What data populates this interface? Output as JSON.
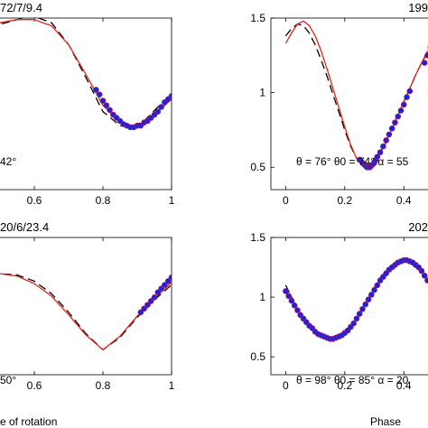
{
  "colors": {
    "model_line": "#e0251b",
    "reference_line": "#000000",
    "observed_points": "#1f22d6",
    "observed_edge": "#b0176a"
  },
  "chart_data": [
    {
      "id": "top-left",
      "type": "line",
      "title": "72/7/9.4",
      "annotation": "42°",
      "xlabel": "",
      "ylabel": "",
      "xlim": [
        0,
        1
      ],
      "ylim": [
        0.4,
        1.5
      ],
      "xticks": [
        0.6,
        0.8,
        1
      ],
      "xtick_labels": [
        "0.6",
        "0.8",
        "1"
      ],
      "yticks": [],
      "ytick_labels": [],
      "grid": false,
      "series": [
        {
          "style": "dashed-black",
          "x": [
            0,
            0.05,
            0.1,
            0.15,
            0.2,
            0.25,
            0.3,
            0.35,
            0.4,
            0.45,
            0.5,
            0.55,
            0.6,
            0.65,
            0.7,
            0.75,
            0.8,
            0.85,
            0.88,
            0.92,
            0.96,
            1.0
          ],
          "y": [
            0.75,
            0.72,
            0.78,
            0.88,
            1.0,
            1.11,
            1.21,
            1.3,
            1.37,
            1.42,
            1.46,
            1.49,
            1.51,
            1.47,
            1.33,
            1.12,
            0.9,
            0.81,
            0.8,
            0.84,
            0.93,
            1.0
          ]
        },
        {
          "style": "solid-red",
          "x": [
            0,
            0.05,
            0.1,
            0.15,
            0.2,
            0.25,
            0.3,
            0.35,
            0.4,
            0.45,
            0.5,
            0.55,
            0.6,
            0.65,
            0.7,
            0.75,
            0.8,
            0.85,
            0.88,
            0.92,
            0.96,
            1.0
          ],
          "y": [
            0.73,
            0.73,
            0.81,
            0.93,
            1.05,
            1.16,
            1.25,
            1.33,
            1.39,
            1.44,
            1.47,
            1.49,
            1.49,
            1.45,
            1.33,
            1.14,
            0.94,
            0.83,
            0.81,
            0.83,
            0.9,
            0.98
          ]
        },
        {
          "style": "points",
          "x": [
            0.78,
            0.79,
            0.8,
            0.81,
            0.82,
            0.83,
            0.84,
            0.85,
            0.86,
            0.87,
            0.88,
            0.89,
            0.9,
            0.91,
            0.92,
            0.93,
            0.94,
            0.95,
            0.96,
            0.97,
            0.98,
            0.99,
            1.0
          ],
          "y": [
            1.04,
            1.01,
            0.97,
            0.94,
            0.91,
            0.88,
            0.86,
            0.84,
            0.82,
            0.81,
            0.8,
            0.8,
            0.81,
            0.81,
            0.83,
            0.84,
            0.86,
            0.88,
            0.9,
            0.93,
            0.96,
            0.98,
            1.0
          ]
        }
      ]
    },
    {
      "id": "top-right",
      "type": "line",
      "title": "199",
      "annotation": "θ = 76°   θ0 = 74°   α = 55",
      "xlabel": "",
      "ylabel": "",
      "xlim": [
        -0.05,
        0.5
      ],
      "ylim": [
        0.35,
        1.5
      ],
      "xticks": [
        0,
        0.2,
        0.4
      ],
      "xtick_labels": [
        "0",
        "0.2",
        "0.4"
      ],
      "yticks": [
        0.5,
        1,
        1.5
      ],
      "ytick_labels": [
        "0.5",
        "1",
        "1.5"
      ],
      "grid": false,
      "series": [
        {
          "style": "dashed-black",
          "x": [
            0,
            0.02,
            0.04,
            0.06,
            0.08,
            0.1,
            0.12,
            0.14,
            0.16,
            0.18,
            0.2,
            0.22,
            0.24,
            0.26,
            0.28,
            0.3,
            0.32,
            0.34,
            0.36,
            0.38,
            0.4,
            0.42,
            0.44,
            0.46,
            0.48
          ],
          "y": [
            1.38,
            1.43,
            1.46,
            1.45,
            1.4,
            1.32,
            1.22,
            1.11,
            0.99,
            0.87,
            0.75,
            0.64,
            0.56,
            0.51,
            0.5,
            0.54,
            0.6,
            0.68,
            0.76,
            0.85,
            0.94,
            1.03,
            1.12,
            1.2,
            1.27
          ]
        },
        {
          "style": "solid-red",
          "x": [
            0,
            0.02,
            0.04,
            0.06,
            0.08,
            0.1,
            0.12,
            0.14,
            0.16,
            0.18,
            0.2,
            0.22,
            0.24,
            0.26,
            0.28,
            0.3,
            0.32,
            0.34,
            0.36,
            0.38,
            0.4,
            0.42,
            0.44,
            0.46,
            0.48
          ],
          "y": [
            1.33,
            1.4,
            1.46,
            1.48,
            1.45,
            1.38,
            1.28,
            1.16,
            1.03,
            0.9,
            0.77,
            0.65,
            0.56,
            0.51,
            0.5,
            0.53,
            0.59,
            0.67,
            0.76,
            0.85,
            0.94,
            1.03,
            1.12,
            1.2,
            1.28
          ]
        },
        {
          "style": "points",
          "x": [
            0.25,
            0.26,
            0.265,
            0.27,
            0.275,
            0.28,
            0.285,
            0.29,
            0.295,
            0.3,
            0.305,
            0.31,
            0.32,
            0.33,
            0.34,
            0.35,
            0.36,
            0.37,
            0.38,
            0.39,
            0.4,
            0.41,
            0.42,
            0.47,
            0.48,
            0.49
          ],
          "y": [
            0.55,
            0.53,
            0.52,
            0.51,
            0.5,
            0.5,
            0.5,
            0.51,
            0.52,
            0.53,
            0.55,
            0.57,
            0.6,
            0.64,
            0.68,
            0.72,
            0.76,
            0.8,
            0.84,
            0.88,
            0.92,
            0.97,
            1.01,
            1.2,
            1.25,
            1.3
          ]
        }
      ]
    },
    {
      "id": "bottom-left",
      "type": "line",
      "title": "20/6/23.4",
      "annotation": "50°",
      "xlabel": "e of rotation",
      "ylabel": "",
      "xlim": [
        0,
        1
      ],
      "ylim": [
        0.4,
        1.5
      ],
      "xticks": [
        0.6,
        0.8,
        1
      ],
      "xtick_labels": [
        "0.6",
        "0.8",
        "1"
      ],
      "yticks": [],
      "ytick_labels": [],
      "grid": false,
      "series": [
        {
          "style": "dashed-black",
          "x": [
            0,
            0.05,
            0.1,
            0.15,
            0.2,
            0.25,
            0.3,
            0.35,
            0.4,
            0.45,
            0.5,
            0.55,
            0.6,
            0.65,
            0.7,
            0.75,
            0.8,
            0.85,
            0.9,
            0.95,
            1.0
          ],
          "y": [
            0.68,
            0.72,
            0.8,
            0.88,
            0.96,
            1.04,
            1.1,
            1.15,
            1.18,
            1.2,
            1.21,
            1.2,
            1.15,
            1.05,
            0.9,
            0.73,
            0.6,
            0.7,
            0.86,
            1.0,
            1.12
          ]
        },
        {
          "style": "solid-red",
          "x": [
            0,
            0.05,
            0.1,
            0.15,
            0.2,
            0.25,
            0.3,
            0.35,
            0.4,
            0.45,
            0.5,
            0.55,
            0.6,
            0.65,
            0.7,
            0.75,
            0.8,
            0.85,
            0.9,
            0.95,
            1.0
          ],
          "y": [
            0.65,
            0.72,
            0.81,
            0.9,
            0.98,
            1.05,
            1.11,
            1.16,
            1.19,
            1.21,
            1.21,
            1.19,
            1.13,
            1.03,
            0.88,
            0.72,
            0.6,
            0.71,
            0.87,
            1.01,
            1.14
          ]
        },
        {
          "style": "points",
          "x": [
            0.91,
            0.92,
            0.93,
            0.94,
            0.95,
            0.96,
            0.97,
            0.98,
            0.99,
            1.0
          ],
          "y": [
            0.9,
            0.93,
            0.96,
            0.99,
            1.02,
            1.06,
            1.09,
            1.12,
            1.15,
            1.18
          ]
        }
      ]
    },
    {
      "id": "bottom-right",
      "type": "line",
      "title": "202",
      "annotation": "θ = 98°   θ0 = 85°   α = 20",
      "xlabel": "Phase",
      "ylabel": "",
      "xlim": [
        -0.05,
        0.5
      ],
      "ylim": [
        0.35,
        1.5
      ],
      "xticks": [
        0,
        0.2,
        0.4
      ],
      "xtick_labels": [
        "0",
        "0.2",
        "0.4"
      ],
      "yticks": [
        0.5,
        1,
        1.5
      ],
      "ytick_labels": [
        "0.5",
        "1",
        "1.5"
      ],
      "grid": false,
      "series": [
        {
          "style": "dashed-black",
          "x": [
            0,
            0.02,
            0.04,
            0.06,
            0.08,
            0.1,
            0.12,
            0.14,
            0.16,
            0.18,
            0.2,
            0.22,
            0.24,
            0.26,
            0.28,
            0.3,
            0.32,
            0.34,
            0.36,
            0.38,
            0.4,
            0.42,
            0.44,
            0.46,
            0.48
          ],
          "y": [
            1.1,
            1.0,
            0.9,
            0.82,
            0.75,
            0.7,
            0.67,
            0.66,
            0.66,
            0.67,
            0.7,
            0.75,
            0.82,
            0.9,
            0.99,
            1.08,
            1.16,
            1.22,
            1.27,
            1.3,
            1.32,
            1.31,
            1.28,
            1.22,
            1.15
          ]
        },
        {
          "style": "solid-red",
          "x": [
            0,
            0.02,
            0.04,
            0.06,
            0.08,
            0.1,
            0.12,
            0.14,
            0.16,
            0.18,
            0.2,
            0.22,
            0.24,
            0.26,
            0.28,
            0.3,
            0.32,
            0.34,
            0.36,
            0.38,
            0.4,
            0.42,
            0.44,
            0.46,
            0.48
          ],
          "y": [
            1.06,
            0.98,
            0.9,
            0.82,
            0.76,
            0.71,
            0.68,
            0.66,
            0.66,
            0.67,
            0.7,
            0.75,
            0.82,
            0.9,
            0.98,
            1.06,
            1.14,
            1.21,
            1.26,
            1.3,
            1.31,
            1.3,
            1.27,
            1.21,
            1.14
          ]
        },
        {
          "style": "points",
          "x": [
            0,
            0.01,
            0.02,
            0.03,
            0.04,
            0.05,
            0.06,
            0.07,
            0.08,
            0.09,
            0.1,
            0.11,
            0.12,
            0.13,
            0.14,
            0.15,
            0.16,
            0.17,
            0.18,
            0.19,
            0.2,
            0.21,
            0.22,
            0.23,
            0.24,
            0.25,
            0.26,
            0.27,
            0.28,
            0.29,
            0.3,
            0.31,
            0.32,
            0.33,
            0.34,
            0.35,
            0.36,
            0.37,
            0.38,
            0.39,
            0.4,
            0.41,
            0.42,
            0.43,
            0.44,
            0.45,
            0.46,
            0.47,
            0.48
          ],
          "y": [
            1.05,
            1.01,
            0.97,
            0.93,
            0.89,
            0.85,
            0.82,
            0.79,
            0.76,
            0.74,
            0.71,
            0.69,
            0.68,
            0.67,
            0.66,
            0.65,
            0.65,
            0.66,
            0.67,
            0.68,
            0.7,
            0.72,
            0.75,
            0.78,
            0.82,
            0.86,
            0.9,
            0.94,
            0.98,
            1.02,
            1.06,
            1.1,
            1.14,
            1.17,
            1.2,
            1.23,
            1.25,
            1.27,
            1.29,
            1.3,
            1.31,
            1.31,
            1.3,
            1.29,
            1.27,
            1.25,
            1.22,
            1.18,
            1.14
          ]
        }
      ]
    }
  ]
}
